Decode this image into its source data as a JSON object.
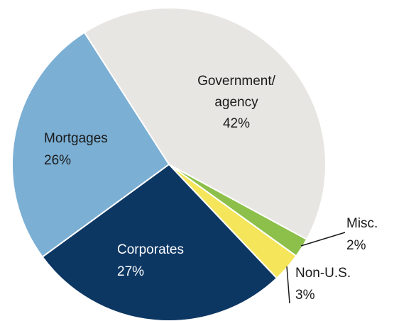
{
  "chart_data": {
    "type": "pie",
    "categories": [
      "Government/agency",
      "Misc.",
      "Non-U.S.",
      "Corporates",
      "Mortgages"
    ],
    "values": [
      42,
      2,
      3,
      27,
      26
    ],
    "value_labels": [
      "42%",
      "2%",
      "3%",
      "27%",
      "26%"
    ],
    "colors": [
      "#e8e6e3",
      "#8dc04b",
      "#f5e55a",
      "#0d3763",
      "#7bafd4"
    ]
  }
}
